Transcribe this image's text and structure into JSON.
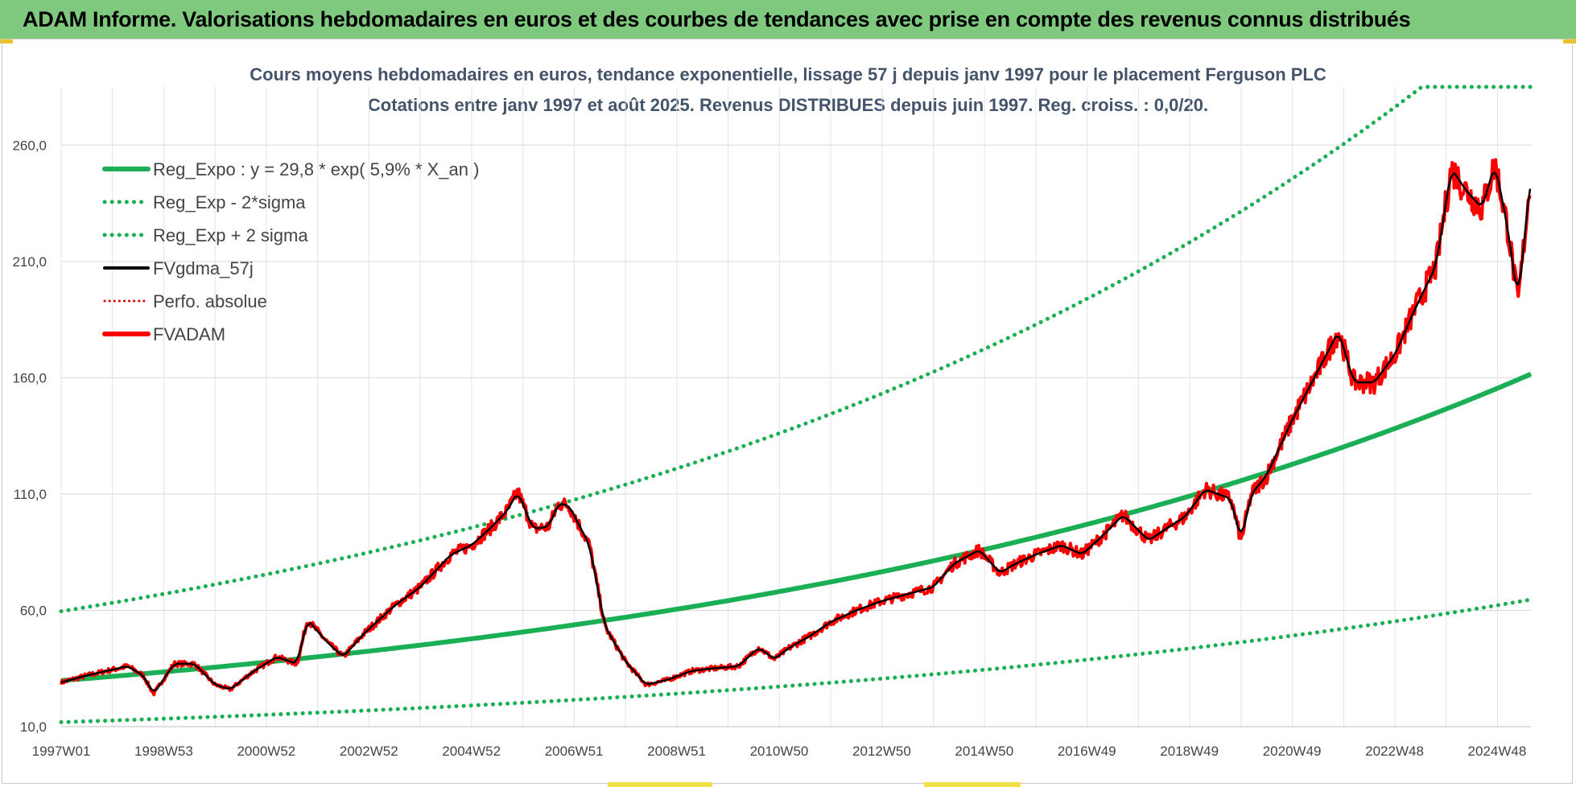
{
  "banner": {
    "title": "ADAM Informe. Valorisations hebdomadaires en euros et des courbes de tendances avec prise en compte des revenus connus distribués",
    "background": "#7fc97f"
  },
  "chart_data": {
    "type": "line",
    "title": "Cours moyens hebdomadaires en euros, tendance exponentielle, lissage 57 j depuis janv 1997 pour le placement Ferguson PLC",
    "subtitle": "Cotations entre janv 1997 et août 2025. Revenus DISTRIBUES depuis juin 1997. Reg. croiss. : 0,0/20.",
    "xlabel": "",
    "ylabel": "",
    "x_tick_labels": [
      "1997W01",
      "1998W53",
      "2000W52",
      "2002W52",
      "2004W52",
      "2006W51",
      "2008W51",
      "2010W50",
      "2012W50",
      "2014W50",
      "2016W49",
      "2018W49",
      "2020W49",
      "2022W48",
      "2024W48"
    ],
    "y_tick_labels": [
      "10,0",
      "60,0",
      "110,0",
      "160,0",
      "210,0",
      "260,0"
    ],
    "y_ticks": [
      10,
      60,
      110,
      160,
      210,
      260
    ],
    "ylim": [
      10,
      285
    ],
    "xlim": [
      1997.0,
      2025.65
    ],
    "grid": true,
    "legend_position": "top-left",
    "regression": {
      "a": 29.8,
      "rate": 0.059,
      "sigma_factor": 2.0
    },
    "series": [
      {
        "name": "Reg_Expo : y = 29,8 * exp( 5,9% *  X_an )",
        "color": "#1aaf54",
        "style": "solid",
        "kind": "regression"
      },
      {
        "name": "Reg_Exp - 2*sigma",
        "color": "#1aaf54",
        "style": "dotted",
        "kind": "lower"
      },
      {
        "name": "Reg_Exp + 2 sigma",
        "color": "#1aaf54",
        "style": "dotted",
        "kind": "upper"
      },
      {
        "name": "FVgdma_57j",
        "color": "#000000",
        "style": "solid",
        "kind": "smoothed"
      },
      {
        "name": "Perfo. absolue",
        "color": "#e00000",
        "style": "dotted",
        "kind": "perf",
        "x": [],
        "y": []
      },
      {
        "name": "FVADAM",
        "color": "#ff0000",
        "style": "solid",
        "kind": "price",
        "x": [
          1997.0,
          1997.5,
          1997.9,
          1998.3,
          1998.6,
          1998.8,
          1999.2,
          1999.6,
          2000.0,
          2000.3,
          2000.7,
          2001.2,
          2001.6,
          2001.8,
          2002.2,
          2002.5,
          2002.9,
          2003.5,
          2004.0,
          2004.6,
          2005.0,
          2005.4,
          2005.7,
          2005.9,
          2006.2,
          2006.5,
          2006.7,
          2006.9,
          2007.3,
          2007.6,
          2008.0,
          2008.4,
          2008.8,
          2009.3,
          2009.7,
          2010.2,
          2010.6,
          2010.9,
          2011.2,
          2011.6,
          2012.0,
          2012.5,
          2013.0,
          2013.5,
          2014.0,
          2014.4,
          2014.9,
          2015.3,
          2015.6,
          2016.0,
          2016.5,
          2016.9,
          2017.3,
          2017.7,
          2018.2,
          2018.6,
          2018.9,
          2019.3,
          2019.8,
          2020.0,
          2020.2,
          2020.5,
          2021.0,
          2021.5,
          2021.9,
          2022.2,
          2022.6,
          2023.0,
          2023.4,
          2023.8,
          2024.1,
          2024.4,
          2024.7,
          2024.95,
          2025.2,
          2025.4,
          2025.65
        ],
        "y": [
          29,
          32,
          34,
          36,
          32,
          24,
          37,
          37,
          28,
          26,
          33,
          40,
          37,
          56,
          46,
          40,
          50,
          62,
          70,
          84,
          88,
          96,
          103,
          111,
          95,
          96,
          106,
          105,
          88,
          53,
          38,
          28,
          30,
          34,
          35,
          36,
          44,
          39,
          44,
          49,
          55,
          60,
          64,
          67,
          70,
          80,
          86,
          76,
          80,
          84,
          88,
          84,
          92,
          101,
          90,
          96,
          100,
          112,
          108,
          90,
          110,
          118,
          142,
          163,
          180,
          158,
          158,
          170,
          190,
          208,
          250,
          240,
          233,
          252,
          224,
          192,
          248
        ]
      }
    ]
  }
}
